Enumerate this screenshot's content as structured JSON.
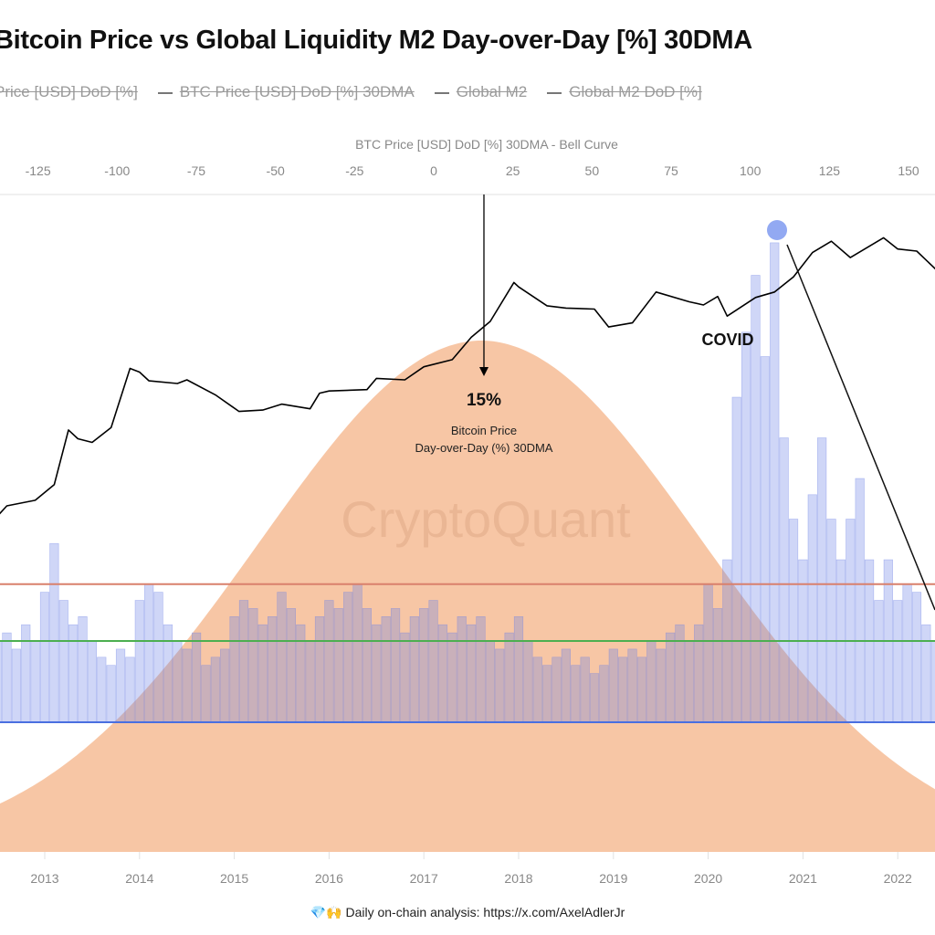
{
  "title": "Bitcoin Price vs Global Liquidity M2 Day-over-Day [%] 30DMA",
  "legend": [
    {
      "label": "Price [USD] DoD [%]",
      "dash": false
    },
    {
      "label": "BTC Price [USD] DoD [%] 30DMA",
      "dash": true
    },
    {
      "label": "Global M2",
      "dash": true
    },
    {
      "label": "Global M2 DoD [%]",
      "dash": true
    }
  ],
  "footer": "💎🙌 Daily on-chain analysis: https://x.com/AxelAdlerJr",
  "watermark": "CryptoQuant",
  "chart_data": {
    "type": "line",
    "title": "Bitcoin Price vs Global Liquidity M2 Day-over-Day [%] 30DMA",
    "top_axis": {
      "label": "BTC Price [USD] DoD [%] 30DMA - Bell Curve",
      "ticks": [
        -125,
        -100,
        -75,
        -50,
        -25,
        0,
        25,
        50,
        75,
        100,
        125,
        150
      ]
    },
    "bottom_axis": {
      "ticks": [
        "2013",
        "2014",
        "2015",
        "2016",
        "2017",
        "2018",
        "2019",
        "2020",
        "2021",
        "2022"
      ]
    },
    "bell_curve": {
      "mean": 15,
      "std": 70,
      "color": "#f7c3a0"
    },
    "btc_price": {
      "scale": "log",
      "color": "#000000",
      "points": [
        [
          2012.45,
          6
        ],
        [
          2012.6,
          10
        ],
        [
          2012.9,
          12
        ],
        [
          2013.1,
          20
        ],
        [
          2013.25,
          120
        ],
        [
          2013.35,
          90
        ],
        [
          2013.5,
          80
        ],
        [
          2013.7,
          130
        ],
        [
          2013.9,
          900
        ],
        [
          2014.0,
          800
        ],
        [
          2014.1,
          600
        ],
        [
          2014.4,
          550
        ],
        [
          2014.5,
          620
        ],
        [
          2014.8,
          380
        ],
        [
          2015.05,
          220
        ],
        [
          2015.3,
          230
        ],
        [
          2015.5,
          280
        ],
        [
          2015.8,
          240
        ],
        [
          2015.9,
          400
        ],
        [
          2016.0,
          430
        ],
        [
          2016.4,
          450
        ],
        [
          2016.5,
          650
        ],
        [
          2016.8,
          620
        ],
        [
          2017.0,
          950
        ],
        [
          2017.3,
          1200
        ],
        [
          2017.5,
          2500
        ],
        [
          2017.7,
          4200
        ],
        [
          2017.95,
          15000
        ],
        [
          2018.0,
          13000
        ],
        [
          2018.3,
          7000
        ],
        [
          2018.5,
          6500
        ],
        [
          2018.8,
          6300
        ],
        [
          2018.95,
          3500
        ],
        [
          2019.2,
          4000
        ],
        [
          2019.45,
          11000
        ],
        [
          2019.8,
          8000
        ],
        [
          2019.95,
          7200
        ],
        [
          2020.1,
          9500
        ],
        [
          2020.2,
          5000
        ],
        [
          2020.5,
          9200
        ],
        [
          2020.7,
          11000
        ],
        [
          2020.9,
          18000
        ],
        [
          2021.1,
          40000
        ],
        [
          2021.3,
          58000
        ],
        [
          2021.5,
          34000
        ],
        [
          2021.85,
          65000
        ],
        [
          2022.0,
          45000
        ],
        [
          2022.2,
          42000
        ],
        [
          2022.45,
          20000
        ]
      ]
    },
    "m2_dod": {
      "color": "#7b8fe6",
      "start_year": 2012.5,
      "step_years": 0.1,
      "values": [
        1.0,
        1.1,
        0.9,
        1.2,
        1.0,
        1.6,
        2.2,
        1.5,
        1.2,
        1.3,
        1.0,
        0.8,
        0.7,
        0.9,
        0.8,
        1.5,
        1.7,
        1.6,
        1.2,
        1.0,
        0.9,
        1.1,
        0.7,
        0.8,
        0.9,
        1.3,
        1.5,
        1.4,
        1.2,
        1.3,
        1.6,
        1.4,
        1.2,
        1.0,
        1.3,
        1.5,
        1.4,
        1.6,
        1.7,
        1.4,
        1.2,
        1.3,
        1.4,
        1.1,
        1.3,
        1.4,
        1.5,
        1.2,
        1.1,
        1.3,
        1.2,
        1.3,
        1.0,
        0.9,
        1.1,
        1.3,
        1.0,
        0.8,
        0.7,
        0.8,
        0.9,
        0.7,
        0.8,
        0.6,
        0.7,
        0.9,
        0.8,
        0.9,
        0.8,
        1.0,
        0.9,
        1.1,
        1.2,
        1.0,
        1.2,
        1.7,
        1.4,
        2.0,
        4.0,
        4.8,
        5.5,
        4.5,
        5.9,
        3.5,
        2.5,
        2.0,
        2.8,
        3.5,
        2.5,
        2.0,
        2.5,
        3.0,
        2.0,
        1.5,
        2.0,
        1.5,
        1.7,
        1.6,
        1.2,
        1.0
      ]
    },
    "reference_lines": [
      {
        "level": 1.7,
        "color": "#d9806c"
      },
      {
        "level": 1.0,
        "color": "#4caf50"
      },
      {
        "level": 0.0,
        "color": "#4a6fe0"
      }
    ],
    "annotations": {
      "peak_value": "15%",
      "peak_caption_1": "Bitcoin Price",
      "peak_caption_2": "Day-over-Day (%) 30DMA",
      "covid": "COVID"
    },
    "grid": false
  }
}
